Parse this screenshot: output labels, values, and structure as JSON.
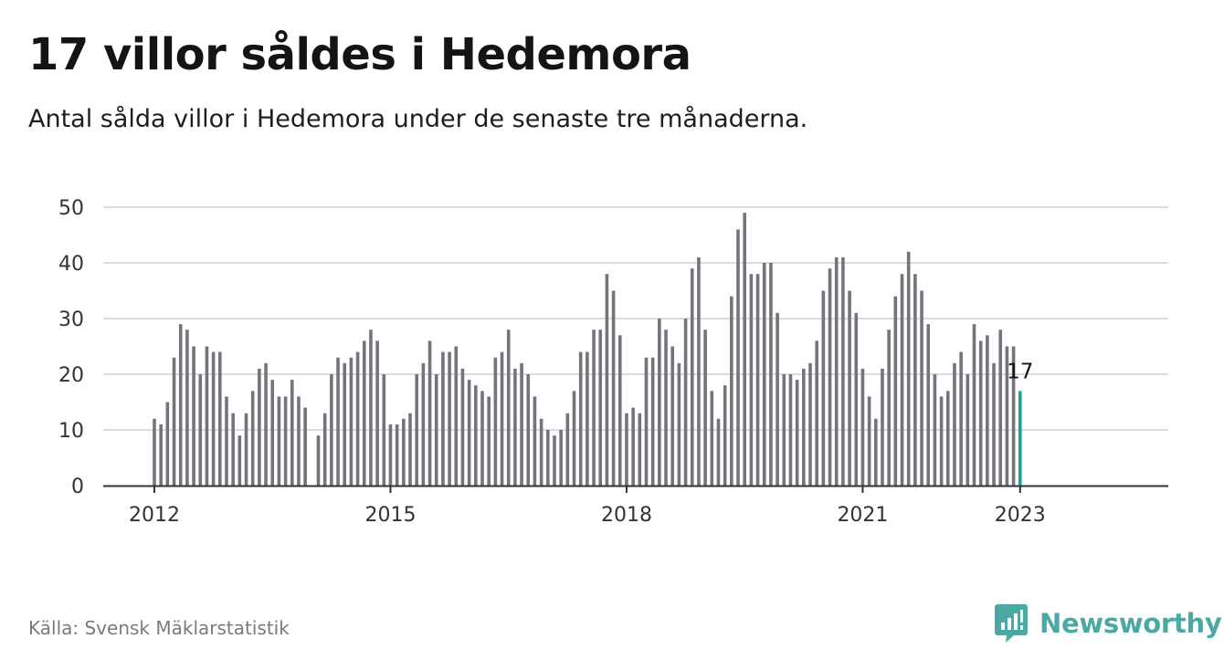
{
  "title": "17 villor såldes i Hedemora",
  "subtitle": "Antal sålda villor i Hedemora under de senaste tre månaderna.",
  "source": "Källa: Svensk Mäklarstatistik",
  "brand": "Newsworthy",
  "colors": {
    "bar": "#74747c",
    "highlight": "#1aa39a",
    "grid": "#dcdcdc",
    "axis": "#333333",
    "brand": "#4aa9a2"
  },
  "chart_data": {
    "type": "bar",
    "title": "17 villor såldes i Hedemora",
    "xlabel": "",
    "ylabel": "",
    "ylim": [
      0,
      50
    ],
    "yticks": [
      0,
      10,
      20,
      30,
      40,
      50
    ],
    "grid": true,
    "x_tick_labels": [
      "2012",
      "2015",
      "2018",
      "2021",
      "2023"
    ],
    "x_tick_months": [
      "2012-01",
      "2015-01",
      "2018-01",
      "2021-01",
      "2023-01"
    ],
    "categories": [
      "2012-01",
      "2012-02",
      "2012-03",
      "2012-04",
      "2012-05",
      "2012-06",
      "2012-07",
      "2012-08",
      "2012-09",
      "2012-10",
      "2012-11",
      "2012-12",
      "2013-01",
      "2013-02",
      "2013-03",
      "2013-04",
      "2013-05",
      "2013-06",
      "2013-07",
      "2013-08",
      "2013-09",
      "2013-10",
      "2013-11",
      "2013-12",
      "2014-01",
      "2014-02",
      "2014-03",
      "2014-04",
      "2014-05",
      "2014-06",
      "2014-07",
      "2014-08",
      "2014-09",
      "2014-10",
      "2014-11",
      "2014-12",
      "2015-01",
      "2015-02",
      "2015-03",
      "2015-04",
      "2015-05",
      "2015-06",
      "2015-07",
      "2015-08",
      "2015-09",
      "2015-10",
      "2015-11",
      "2015-12",
      "2016-01",
      "2016-02",
      "2016-03",
      "2016-04",
      "2016-05",
      "2016-06",
      "2016-07",
      "2016-08",
      "2016-09",
      "2016-10",
      "2016-11",
      "2016-12",
      "2017-01",
      "2017-02",
      "2017-03",
      "2017-04",
      "2017-05",
      "2017-06",
      "2017-07",
      "2017-08",
      "2017-09",
      "2017-10",
      "2017-11",
      "2017-12",
      "2018-01",
      "2018-02",
      "2018-03",
      "2018-04",
      "2018-05",
      "2018-06",
      "2018-07",
      "2018-08",
      "2018-09",
      "2018-10",
      "2018-11",
      "2018-12",
      "2019-01",
      "2019-02",
      "2019-03",
      "2019-04",
      "2019-05",
      "2019-06",
      "2019-07",
      "2019-08",
      "2019-09",
      "2019-10",
      "2019-11",
      "2019-12",
      "2020-01",
      "2020-02",
      "2020-03",
      "2020-04",
      "2020-05",
      "2020-06",
      "2020-07",
      "2020-08",
      "2020-09",
      "2020-10",
      "2020-11",
      "2020-12",
      "2021-01",
      "2021-02",
      "2021-03",
      "2021-04",
      "2021-05",
      "2021-06",
      "2021-07",
      "2021-08",
      "2021-09",
      "2021-10",
      "2021-11",
      "2021-12",
      "2022-01",
      "2022-02",
      "2022-03",
      "2022-04",
      "2022-05",
      "2022-06",
      "2022-07",
      "2022-08",
      "2022-09",
      "2022-10",
      "2022-11",
      "2022-12",
      "2023-01"
    ],
    "values": [
      12,
      11,
      15,
      23,
      29,
      28,
      25,
      20,
      25,
      24,
      24,
      16,
      13,
      9,
      13,
      17,
      21,
      22,
      19,
      16,
      16,
      19,
      16,
      14,
      null,
      9,
      13,
      20,
      23,
      22,
      23,
      24,
      26,
      28,
      26,
      20,
      11,
      11,
      12,
      13,
      20,
      22,
      26,
      20,
      24,
      24,
      25,
      21,
      19,
      18,
      17,
      16,
      23,
      24,
      28,
      21,
      22,
      20,
      16,
      12,
      10,
      9,
      10,
      13,
      17,
      24,
      24,
      28,
      28,
      38,
      35,
      27,
      13,
      14,
      13,
      23,
      23,
      30,
      28,
      25,
      22,
      30,
      39,
      41,
      28,
      17,
      12,
      18,
      34,
      46,
      49,
      38,
      38,
      40,
      40,
      31,
      20,
      20,
      19,
      21,
      22,
      26,
      35,
      39,
      41,
      41,
      35,
      31,
      21,
      16,
      12,
      21,
      28,
      34,
      38,
      42,
      38,
      35,
      29,
      20,
      16,
      17,
      22,
      24,
      20,
      29,
      26,
      27,
      22,
      28,
      25,
      25,
      17
    ],
    "highlight_index": 132,
    "highlight_label": "17"
  }
}
